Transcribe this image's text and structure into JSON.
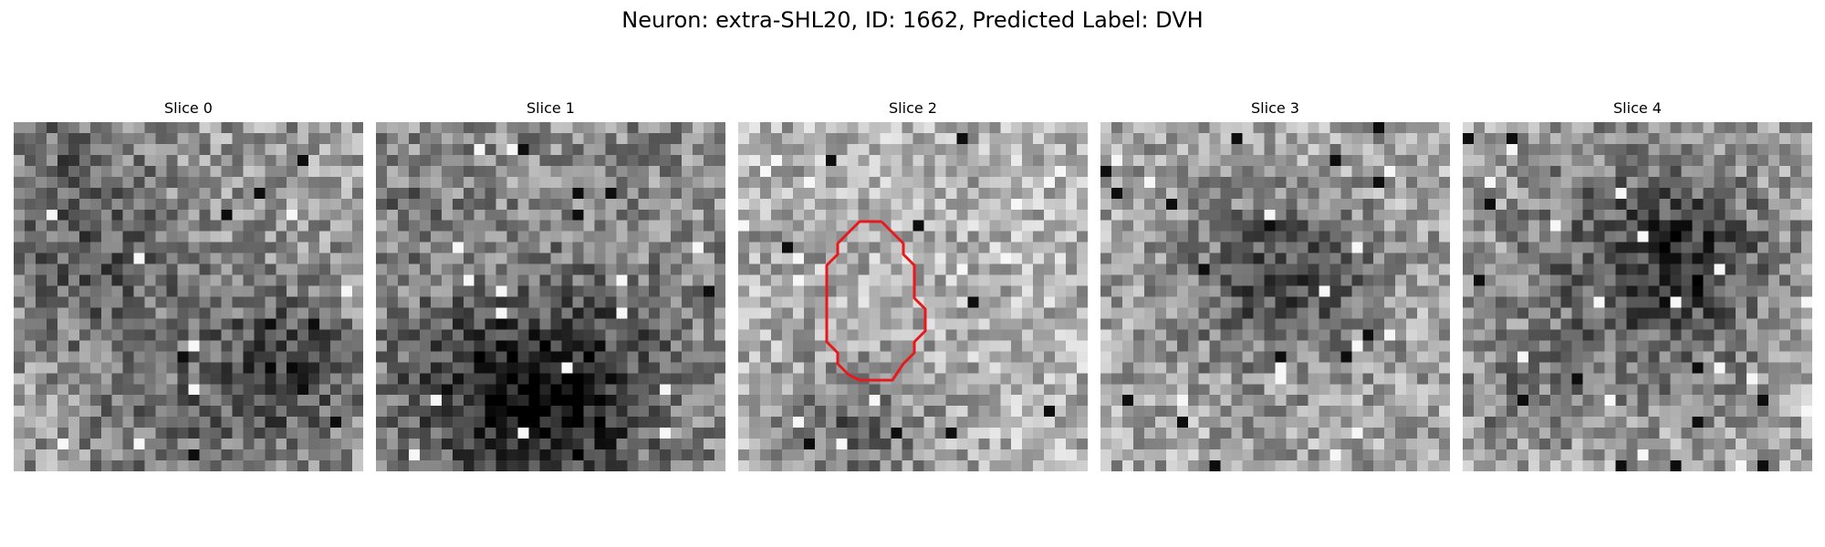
{
  "figure": {
    "title": "Neuron: extra-SHL20, ID: 1662, Predicted Label: DVH"
  },
  "panels": [
    {
      "title": "Slice 0",
      "image_name": "microscopy-slice-0"
    },
    {
      "title": "Slice 1",
      "image_name": "microscopy-slice-1"
    },
    {
      "title": "Slice 2",
      "image_name": "microscopy-slice-2"
    },
    {
      "title": "Slice 3",
      "image_name": "microscopy-slice-3"
    },
    {
      "title": "Slice 4",
      "image_name": "microscopy-slice-4"
    }
  ],
  "colors": {
    "contour": "#e8191d",
    "background": "#ffffff"
  }
}
